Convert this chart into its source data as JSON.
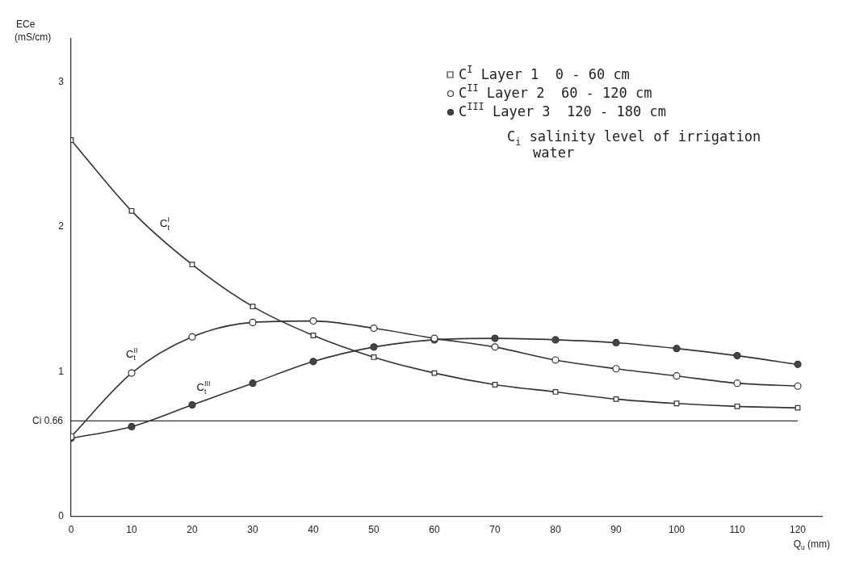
{
  "chart_data": {
    "type": "line",
    "xlabel": "Q$_{u}$ (mm)",
    "ylabel": "ECe (mS/cm)",
    "x": [
      0,
      10,
      20,
      30,
      40,
      50,
      60,
      70,
      80,
      90,
      100,
      110,
      120
    ],
    "xlim": [
      0,
      124
    ],
    "xticks": [
      0,
      10,
      20,
      30,
      40,
      50,
      60,
      70,
      80,
      90,
      100,
      110,
      120
    ],
    "ylim": [
      0,
      3.3
    ],
    "yticks": [
      0,
      1,
      2,
      3
    ],
    "grid": false,
    "legend": "top right",
    "line_style": "solid",
    "series": [
      {
        "name": "C$^{I}$ Layer 1  0 - 60 cm",
        "color": "#333333",
        "marker": "square",
        "colors": [
          "#ffffff",
          "#ffffff",
          "#ffffff",
          "#ffffff",
          "#ffffff",
          "#ffffff",
          "#ffffff",
          "#ffffff",
          "#ffffff",
          "#ffffff",
          "#ffffff",
          "#ffffff",
          "#ffffff"
        ],
        "values": [
          2.6,
          2.11,
          1.74,
          1.45,
          1.25,
          1.1,
          0.99,
          0.91,
          0.86,
          0.81,
          0.78,
          0.76,
          0.75
        ]
      },
      {
        "name": "C$^{II}$ Layer 2  60 - 120 cm",
        "color": "#333333",
        "marker": "circle",
        "colors": [
          "#ffffff",
          "#ffffff",
          "#ffffff",
          "#ffffff",
          "#ffffff",
          "#ffffff",
          "#ffffff",
          "#ffffff",
          "#ffffff",
          "#ffffff",
          "#ffffff",
          "#ffffff",
          "#ffffff"
        ],
        "values": [
          0.55,
          0.99,
          1.24,
          1.34,
          1.35,
          1.3,
          1.23,
          1.17,
          1.08,
          1.02,
          0.97,
          0.92,
          0.9
        ]
      },
      {
        "name": "C$^{III}$ Layer 3  120 - 180 cm",
        "color": "#333333",
        "marker": "circle",
        "colors": [
          "#444444",
          "#444444",
          "#444444",
          "#444444",
          "#444444",
          "#444444",
          "#444444",
          "#444444",
          "#444444",
          "#444444",
          "#444444",
          "#444444",
          "#444444"
        ],
        "values": [
          0.54,
          0.62,
          0.77,
          0.92,
          1.07,
          1.17,
          1.22,
          1.23,
          1.22,
          1.2,
          1.16,
          1.11,
          1.05
        ]
      }
    ],
    "ref_lines": [
      {
        "axis": "y",
        "value": 0.66,
        "label": "Ci 0.66",
        "color": "#333333"
      }
    ],
    "annotations": [
      "C$_{i}$ salinity level of irrigation water",
      {
        "text": "C$_{t}$$^{I}$",
        "x": 14,
        "y": 1.96
      },
      {
        "text": "C$_{t}$$^{II}$",
        "x": 12,
        "y": 1.06
      },
      {
        "text": "C$_{t}$$^{III}$",
        "x": 24,
        "y": 0.83
      }
    ]
  }
}
